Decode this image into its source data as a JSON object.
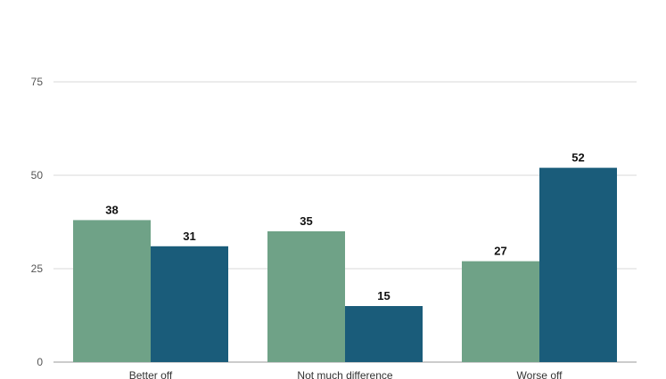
{
  "chart_data": {
    "type": "bar",
    "categories": [
      "Better off",
      "Not much difference",
      "Worse off"
    ],
    "series": [
      {
        "values": [
          38,
          35,
          27
        ],
        "color": "#6fa287"
      },
      {
        "values": [
          31,
          15,
          52
        ],
        "color": "#1a5c7a"
      }
    ],
    "yticks": [
      "0",
      "25",
      "50",
      "75"
    ],
    "ylim": [
      0,
      75
    ],
    "grid": true,
    "legend": "none",
    "title": "",
    "xlabel": "",
    "ylabel": ""
  }
}
